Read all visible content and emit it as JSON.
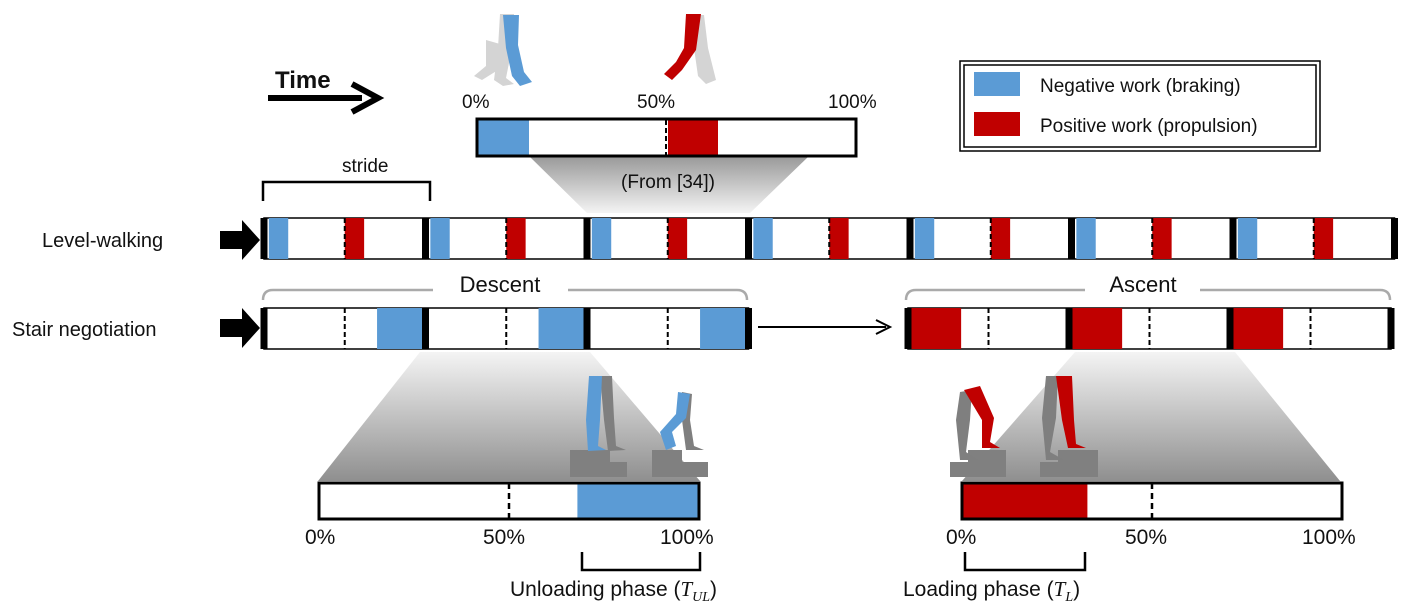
{
  "colors": {
    "negative": "#5b9bd5",
    "positive": "#c00000",
    "limb_gray": "#7f7f7f",
    "light_gray": "#d0d0d0",
    "step_gray": "#808080",
    "bracket_gray": "#aaaaaa"
  },
  "time_label": "Time",
  "legend": {
    "negative": "Negative work (braking)",
    "positive": "Positive work (propulsion)"
  },
  "zoom_top": {
    "tick_0": "0%",
    "tick_50": "50%",
    "tick_100": "100%",
    "source": "(From [34])",
    "segments": [
      {
        "type": "negative",
        "start": 0,
        "end": 14
      },
      {
        "type": "positive",
        "start": 50,
        "end": 63
      }
    ]
  },
  "stride_label": "stride",
  "rows": {
    "level_walking": "Level-walking",
    "stair_negotiation": "Stair negotiation"
  },
  "descent_label": "Descent",
  "ascent_label": "Ascent",
  "zoom_descent": {
    "tick_0": "0%",
    "tick_50": "50%",
    "tick_100": "100%",
    "segments": [
      {
        "type": "negative",
        "start": 68,
        "end": 100
      }
    ]
  },
  "zoom_ascent": {
    "tick_0": "0%",
    "tick_50": "50%",
    "tick_100": "100%",
    "segments": [
      {
        "type": "positive",
        "start": 0,
        "end": 33
      }
    ]
  },
  "unloading": {
    "label": "Unloading phase (",
    "symbol": "T",
    "sub": "UL",
    "close": ")"
  },
  "loading": {
    "label": "Loading phase (",
    "symbol": "T",
    "sub": "L",
    "close": ")"
  }
}
